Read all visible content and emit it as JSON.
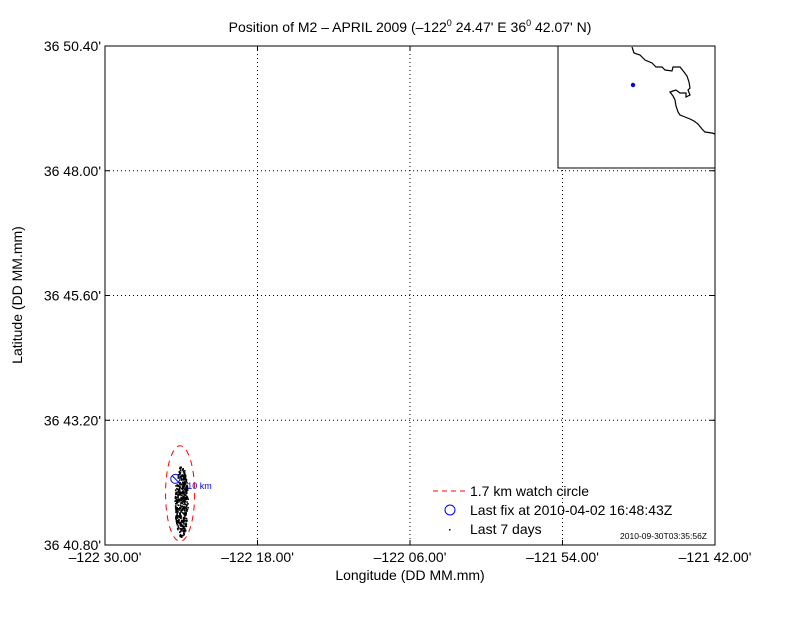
{
  "chart_data": {
    "type": "scatter",
    "title": "Position of M2 – APRIL 2009 (–122° 24.47' E  36° 42.07' N)",
    "title_parts": [
      "Position of M2 – APRIL 2009 (–122",
      "0",
      " 24.47' E  36",
      "0",
      " 42.07' N)"
    ],
    "xlabel": "Longitude (DD MM.mm)",
    "ylabel": "Latitude (DD MM.mm)",
    "xlim": [
      -122.5,
      -121.7
    ],
    "ylim": [
      36.68,
      36.84
    ],
    "grid": true,
    "x_ticks": [
      {
        "value": -122.5,
        "label": "–122 30.00'"
      },
      {
        "value": -122.3,
        "label": "–122 18.00'"
      },
      {
        "value": -122.1,
        "label": "–122 06.00'"
      },
      {
        "value": -121.9,
        "label": "–121 54.00'"
      },
      {
        "value": -121.7,
        "label": "–121 42.00'"
      }
    ],
    "y_ticks": [
      {
        "value": 36.68,
        "label": "36 40.80'"
      },
      {
        "value": 36.72,
        "label": "36 43.20'"
      },
      {
        "value": 36.76,
        "label": "36 45.60'"
      },
      {
        "value": 36.8,
        "label": "36 48.00'"
      },
      {
        "value": 36.84,
        "label": "36 50.40'"
      }
    ],
    "last_fix": {
      "lon": -122.4078,
      "lat": 36.7012,
      "label": "Last fix at 2010-04-02 16:48:43Z"
    },
    "watch_circle": {
      "lon": -122.4015,
      "lat": 36.6965,
      "radius_km": 1.7,
      "label": "1.7 km watch circle"
    },
    "last_7_days": {
      "label": "Last 7 days",
      "center_lon": -122.4005,
      "center_lat": 36.694,
      "spread_lon": 0.0085,
      "spread_lat": 0.0115,
      "count": 420
    },
    "scale_label": "10 km",
    "legend_position": "bottom-right",
    "timestamp": "2010-09-30T03:35:56Z",
    "colors": {
      "watch": "#ff0000",
      "fix": "#0000ff",
      "points": "#000000",
      "scale": "#0000ff"
    }
  }
}
